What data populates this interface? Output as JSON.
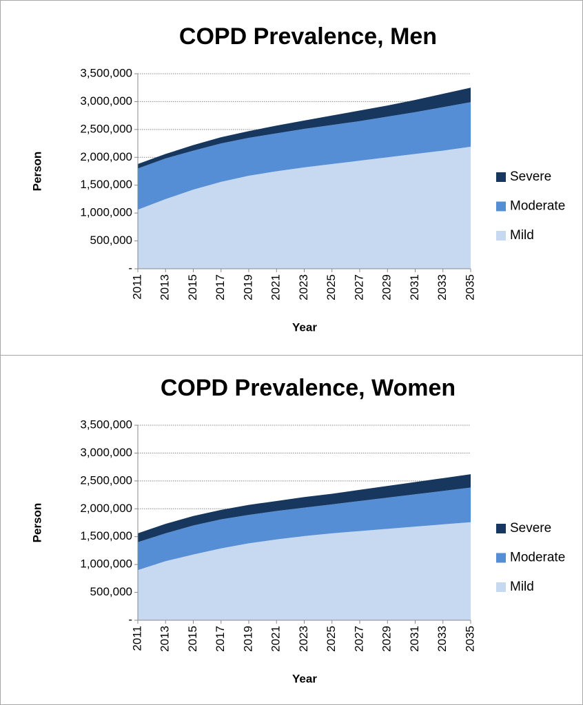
{
  "chart_data": [
    {
      "type": "stacked-area",
      "title": "COPD Prevalence, Men",
      "x_label": "Year",
      "y_label": "Person",
      "categories": [
        "2011",
        "2013",
        "2015",
        "2017",
        "2019",
        "2021",
        "2023",
        "2025",
        "2027",
        "2029",
        "2031",
        "2033",
        "2035"
      ],
      "series": [
        {
          "name": "Mild",
          "color": "#c6d9f1",
          "values": [
            1060000,
            1250000,
            1420000,
            1560000,
            1670000,
            1750000,
            1820000,
            1880000,
            1940000,
            2000000,
            2060000,
            2120000,
            2190000
          ]
        },
        {
          "name": "Moderate",
          "color": "#558ed5",
          "values": [
            740000,
            730000,
            700000,
            690000,
            680000,
            680000,
            690000,
            700000,
            710000,
            730000,
            750000,
            780000,
            800000
          ]
        },
        {
          "name": "Severe",
          "color": "#17375e",
          "values": [
            80000,
            80000,
            100000,
            110000,
            120000,
            140000,
            150000,
            170000,
            190000,
            200000,
            220000,
            240000,
            260000
          ]
        }
      ],
      "ylim": [
        0,
        3500000
      ],
      "yticks": [
        {
          "value": 0,
          "label": "-"
        },
        {
          "value": 500000,
          "label": "500,000"
        },
        {
          "value": 1000000,
          "label": "1,000,000"
        },
        {
          "value": 1500000,
          "label": "1,500,000"
        },
        {
          "value": 2000000,
          "label": "2,000,000"
        },
        {
          "value": 2500000,
          "label": "2,500,000"
        },
        {
          "value": 3000000,
          "label": "3,000,000"
        },
        {
          "value": 3500000,
          "label": "3,500,000"
        }
      ],
      "grid": true,
      "legend": "right"
    },
    {
      "type": "stacked-area",
      "title": "COPD Prevalence, Women",
      "x_label": "Year",
      "y_label": "Person",
      "categories": [
        "2011",
        "2013",
        "2015",
        "2017",
        "2019",
        "2021",
        "2023",
        "2025",
        "2027",
        "2029",
        "2031",
        "2033",
        "2035"
      ],
      "series": [
        {
          "name": "Mild",
          "color": "#c6d9f1",
          "values": [
            900000,
            1060000,
            1180000,
            1290000,
            1380000,
            1450000,
            1510000,
            1560000,
            1600000,
            1640000,
            1680000,
            1720000,
            1760000
          ]
        },
        {
          "name": "Moderate",
          "color": "#558ed5",
          "values": [
            500000,
            500000,
            520000,
            520000,
            510000,
            510000,
            510000,
            520000,
            540000,
            560000,
            580000,
            600000,
            620000
          ]
        },
        {
          "name": "Severe",
          "color": "#17375e",
          "values": [
            160000,
            170000,
            170000,
            170000,
            180000,
            180000,
            190000,
            190000,
            200000,
            210000,
            220000,
            230000,
            240000
          ]
        }
      ],
      "ylim": [
        0,
        3500000
      ],
      "yticks": [
        {
          "value": 0,
          "label": "-"
        },
        {
          "value": 500000,
          "label": "500,000"
        },
        {
          "value": 1000000,
          "label": "1,000,000"
        },
        {
          "value": 1500000,
          "label": "1,500,000"
        },
        {
          "value": 2000000,
          "label": "2,000,000"
        },
        {
          "value": 2500000,
          "label": "2,500,000"
        },
        {
          "value": 3000000,
          "label": "3,000,000"
        },
        {
          "value": 3500000,
          "label": "3,500,000"
        }
      ],
      "grid": true,
      "legend": "right"
    }
  ]
}
